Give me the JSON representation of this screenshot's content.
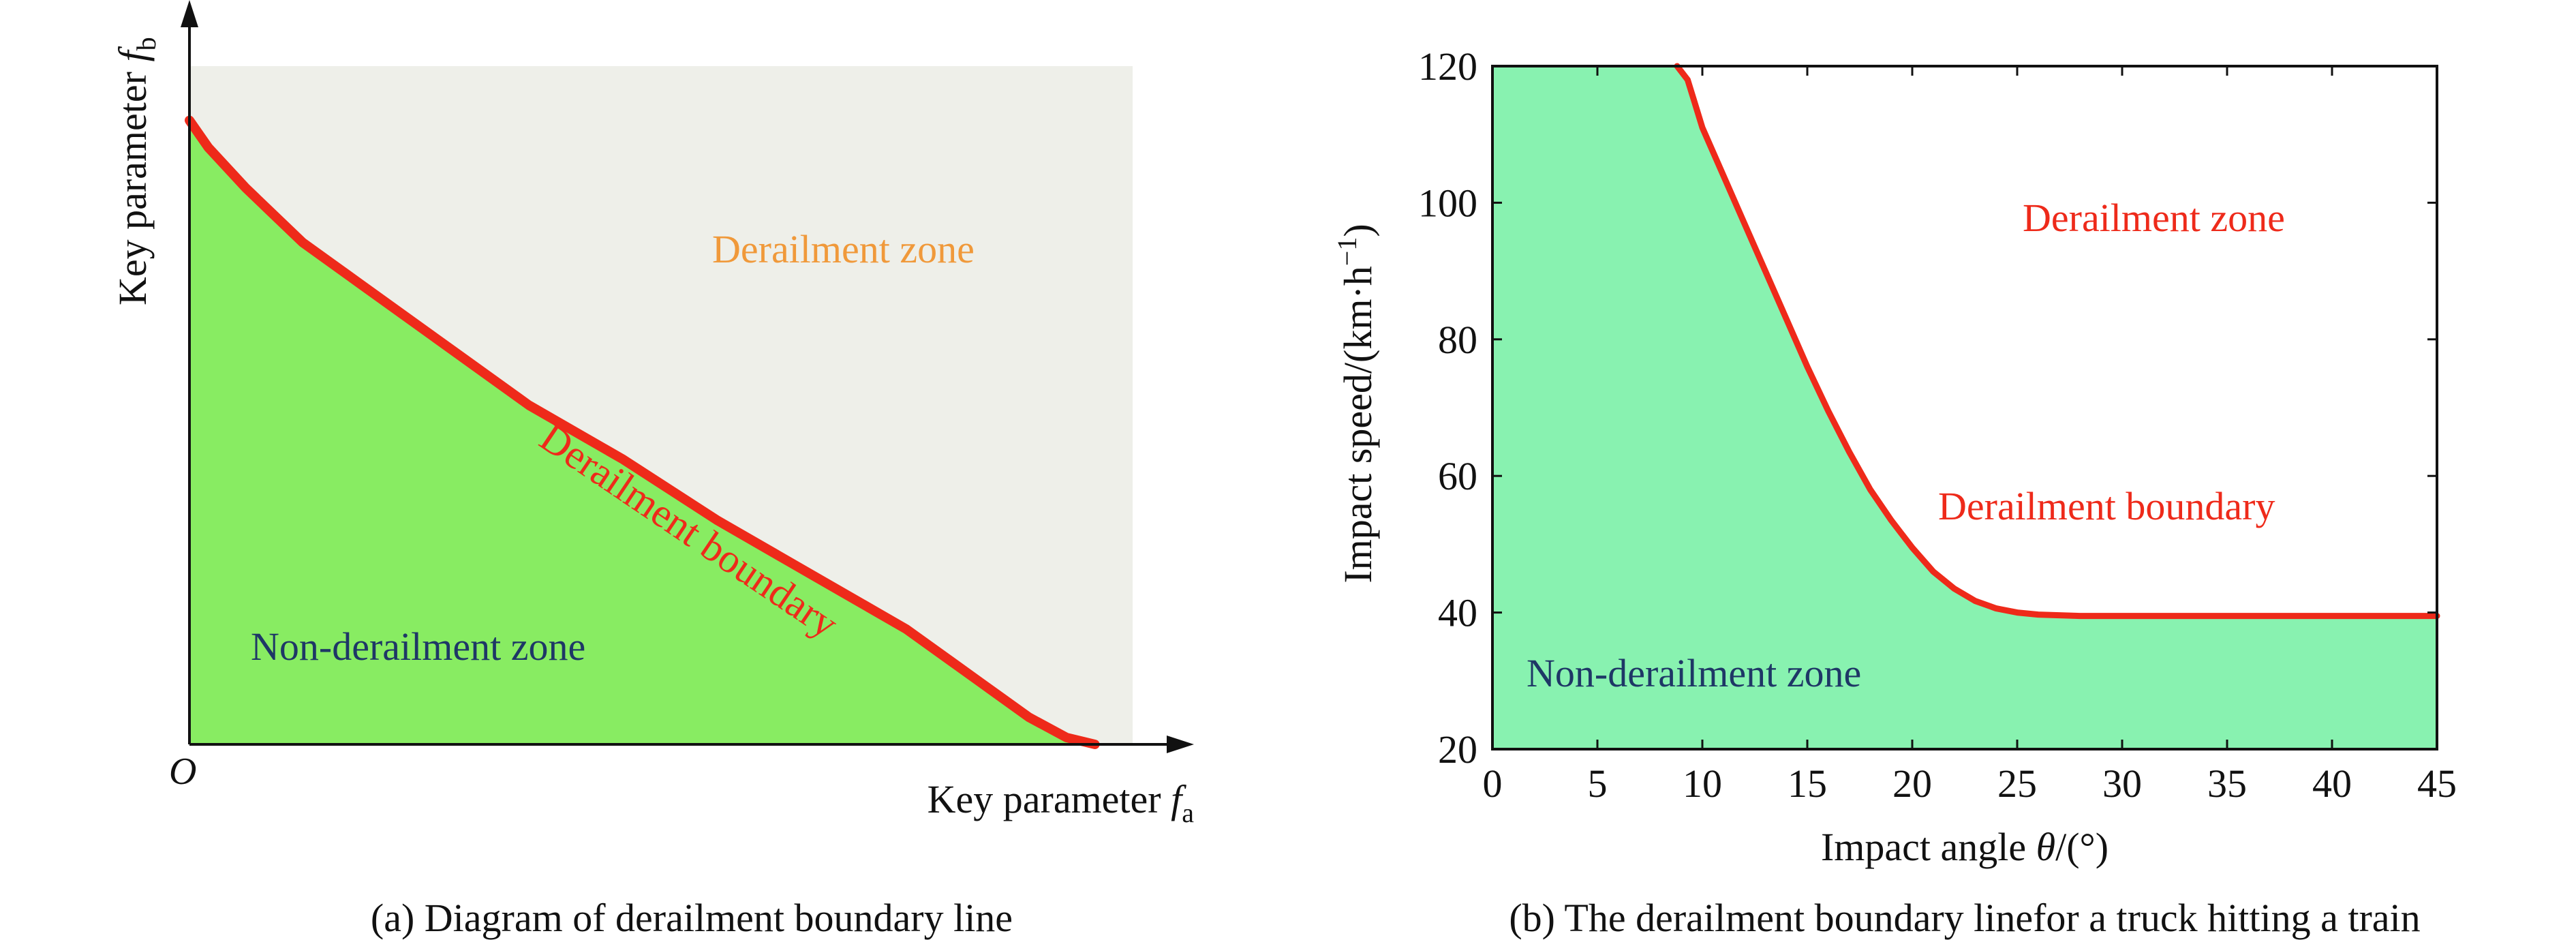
{
  "chart_data": [
    {
      "type": "area",
      "panel_caption": "(a) Diagram of derailment boundary line",
      "origin_label": "O",
      "x_label": {
        "text": "Key parameter ",
        "var": "f",
        "sub": "a"
      },
      "y_label": {
        "text": "Key parameter ",
        "var": "f",
        "sub": "b"
      },
      "series": [
        {
          "name": "Derailment boundary",
          "color": "#ee2a1a",
          "points": [
            [
              0,
              0.92
            ],
            [
              0.02,
              0.88
            ],
            [
              0.06,
              0.82
            ],
            [
              0.12,
              0.74
            ],
            [
              0.18,
              0.68
            ],
            [
              0.26,
              0.6
            ],
            [
              0.36,
              0.5
            ],
            [
              0.46,
              0.42
            ],
            [
              0.56,
              0.33
            ],
            [
              0.66,
              0.25
            ],
            [
              0.76,
              0.17
            ],
            [
              0.84,
              0.09
            ],
            [
              0.89,
              0.04
            ],
            [
              0.93,
              0.01
            ],
            [
              0.96,
              0
            ]
          ]
        }
      ],
      "zones": [
        {
          "name": "Derailment zone",
          "color": "#f0993a",
          "fill": "#eeefe9"
        },
        {
          "name": "Non-derailment zone",
          "color": "#1e3766",
          "fill": "#88ec62"
        }
      ],
      "boundary_label": "Derailment boundary",
      "colors": {
        "boundary": "#ee2a1a"
      }
    },
    {
      "type": "area",
      "panel_caption": "(b) The derailment boundary linefor a truck hitting a train",
      "x_label": {
        "text": "Impact angle ",
        "var": "θ",
        "unit": "/(°)"
      },
      "y_label": {
        "text": "Impact speed/(km·h",
        "sup": "−1",
        "close": ")"
      },
      "xlim": [
        0,
        45
      ],
      "ylim": [
        20,
        120
      ],
      "x_ticks": [
        0,
        5,
        10,
        15,
        20,
        25,
        30,
        35,
        40,
        45
      ],
      "y_ticks": [
        20,
        40,
        60,
        80,
        100,
        120
      ],
      "series": [
        {
          "name": "Derailment boundary",
          "color": "#ee2a1a",
          "points": [
            [
              8.8,
              120
            ],
            [
              9.3,
              118
            ],
            [
              9.6,
              115
            ],
            [
              10,
              111
            ],
            [
              11,
              104
            ],
            [
              12,
              97
            ],
            [
              13,
              90
            ],
            [
              14,
              83
            ],
            [
              15,
              76
            ],
            [
              16,
              69.5
            ],
            [
              17,
              63.5
            ],
            [
              18,
              58
            ],
            [
              19,
              53.5
            ],
            [
              20,
              49.5
            ],
            [
              21,
              46
            ],
            [
              22,
              43.5
            ],
            [
              23,
              41.7
            ],
            [
              24,
              40.6
            ],
            [
              25,
              40
            ],
            [
              26,
              39.7
            ],
            [
              28,
              39.5
            ],
            [
              30,
              39.5
            ],
            [
              35,
              39.5
            ],
            [
              40,
              39.5
            ],
            [
              45,
              39.5
            ]
          ]
        }
      ],
      "zones": [
        {
          "name": "Derailment zone",
          "color": "#ee2a1a",
          "fill": "#ffffff"
        },
        {
          "name": "Non-derailment zone",
          "color": "#1e3766",
          "fill": "#88f2b0"
        }
      ],
      "boundary_label": "Derailment boundary",
      "colors": {
        "boundary": "#ee2a1a"
      }
    }
  ]
}
